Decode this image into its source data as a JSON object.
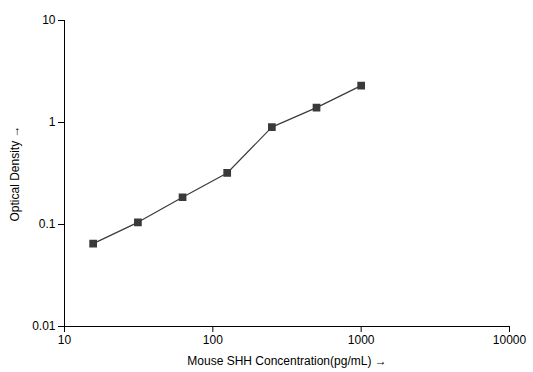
{
  "chart_data": {
    "type": "line",
    "x": [
      15.6,
      31.25,
      62.5,
      125,
      250,
      500,
      1000
    ],
    "values": [
      0.065,
      0.105,
      0.185,
      0.32,
      0.9,
      1.4,
      2.3
    ],
    "xlabel": "Mouse SHH Concentration(pg/mL)",
    "ylabel": "Optical Density",
    "log": true,
    "xlim": [
      10,
      10000
    ],
    "ylim": [
      0.01,
      10
    ],
    "xticks": [
      10,
      100,
      1000,
      10000
    ],
    "yticks": [
      0.01,
      0.1,
      1,
      10
    ],
    "color": "#3a3a3a",
    "marker": "square",
    "grid": false
  }
}
